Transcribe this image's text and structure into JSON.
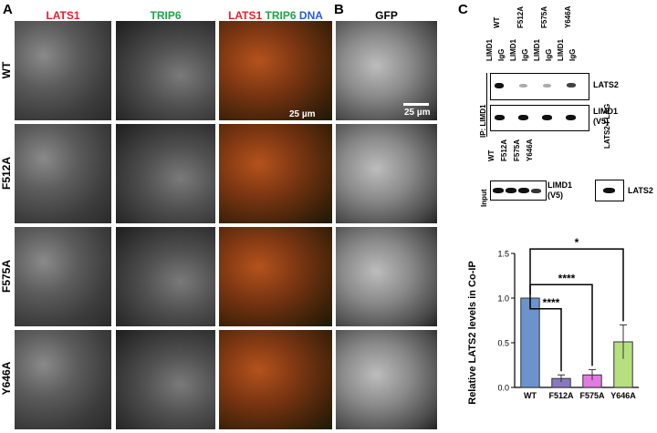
{
  "panels": {
    "A": "A",
    "B": "B",
    "C": "C"
  },
  "panel_a": {
    "columns": {
      "lats1": "LATS1",
      "trip6": "TRIP6",
      "merge_lats1": "LATS1",
      "merge_trip6": "TRIP6",
      "merge_dna": "DNA"
    },
    "rows": [
      "WT",
      "F512A",
      "F575A",
      "Y646A"
    ],
    "scale_bar": "25 µm",
    "colors": {
      "lats1": "#e8202a",
      "trip6": "#1aa64a",
      "dna": "#2a5bd8"
    }
  },
  "panel_b": {
    "column": "GFP",
    "scale_bar": "25 µm"
  },
  "panel_c": {
    "ip_label": "IP: LIMD1",
    "ip_groups": [
      "WT",
      "F512A",
      "F575A",
      "Y646A"
    ],
    "ip_lanes": [
      "LIMD1",
      "IgG",
      "LIMD1",
      "IgG",
      "LIMD1",
      "IgG",
      "LIMD1",
      "IgG"
    ],
    "ip_blot_labels": {
      "lats2": "LATS2",
      "limd1": "LIMD1",
      "limd1_tag": "(V5)"
    },
    "input_label": "Input",
    "input_lanes": [
      "WT",
      "F512A",
      "F575A",
      "Y646A"
    ],
    "input_blot_label": "LIMD1",
    "input_blot_tag": "(V5)",
    "flag_lane": "LATS2-FLAG",
    "flag_blot_label": "LATS2"
  },
  "chart_data": {
    "type": "bar",
    "categories": [
      "WT",
      "F512A",
      "F575A",
      "Y646A"
    ],
    "values": [
      1.0,
      0.1,
      0.14,
      0.51
    ],
    "errors": [
      0,
      0.04,
      0.06,
      0.19
    ],
    "colors": [
      "#6c93cc",
      "#8a78bf",
      "#e07be0",
      "#b6e07f"
    ],
    "ylabel": "Relative LATS2 levels in Co-IP",
    "ylim": [
      0,
      1.5
    ],
    "yticks": [
      "0.0",
      "0.5",
      "1.0",
      "1.5"
    ],
    "significance": [
      {
        "from": "WT",
        "to": "F512A",
        "label": "****"
      },
      {
        "from": "WT",
        "to": "F575A",
        "label": "****"
      },
      {
        "from": "WT",
        "to": "Y646A",
        "label": "*"
      }
    ]
  }
}
